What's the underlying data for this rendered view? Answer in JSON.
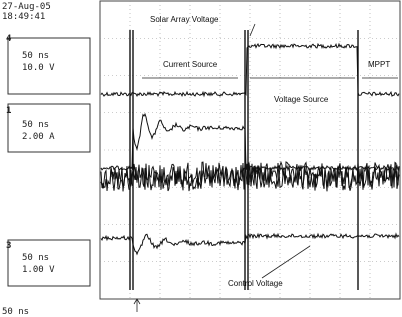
{
  "header": {
    "date": "27-Aug-05",
    "time": "18:49:41"
  },
  "channels": [
    {
      "id": "4",
      "timebase": "50 ns",
      "scale": "10.0 V"
    },
    {
      "id": "1",
      "timebase": "50 ns",
      "scale": "2.00 A"
    },
    {
      "id": "3",
      "timebase": "50 ns",
      "scale": "1.00 V"
    }
  ],
  "annotations": {
    "solar_array_voltage": "Solar Array Voltage",
    "current_source": "Current Source",
    "voltage_source": "Voltage Source",
    "mppt": "MPPT",
    "control_voltage": "Control Voltage"
  },
  "footer": "50 ns"
}
